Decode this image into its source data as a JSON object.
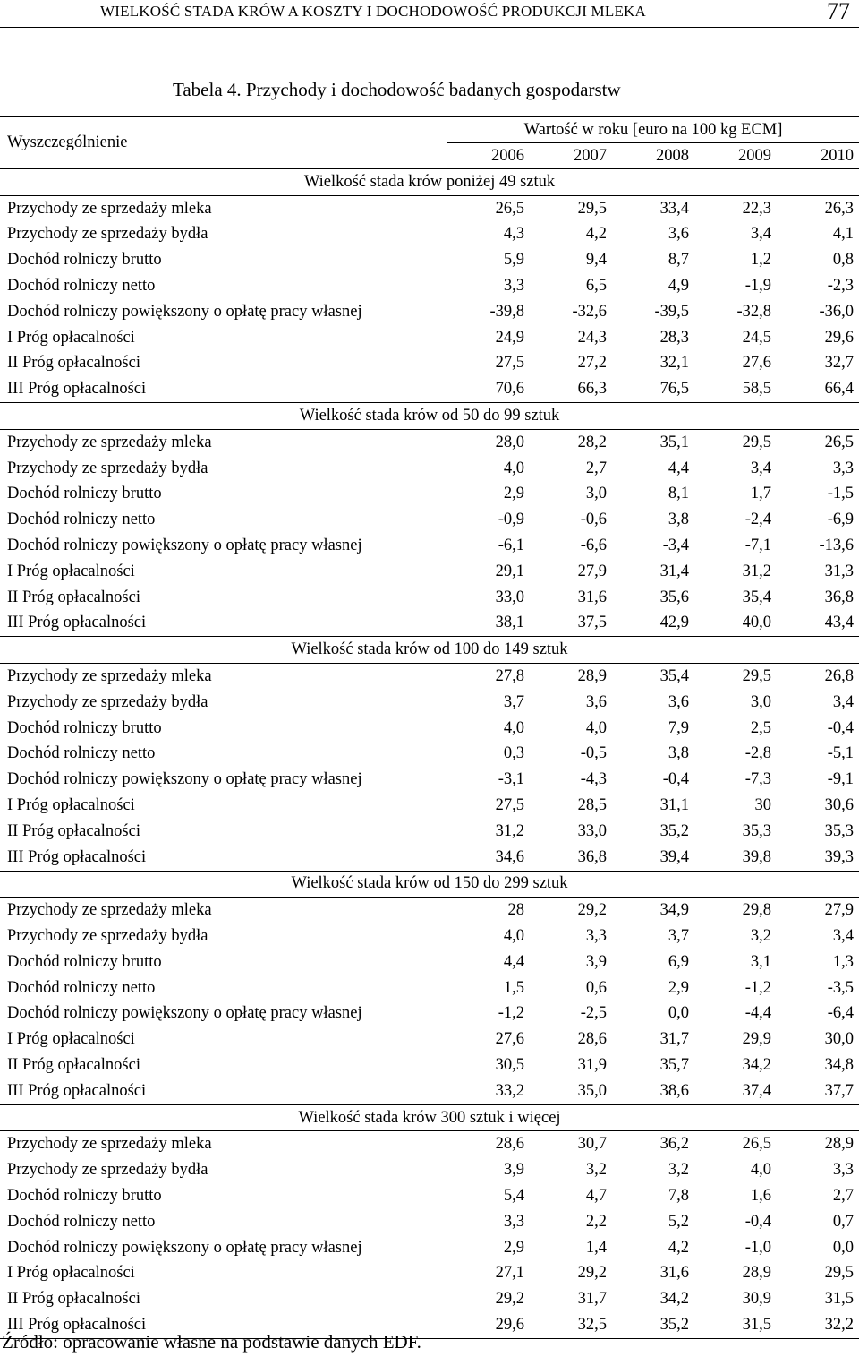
{
  "running_header": {
    "title": "WIELKOŚĆ STADA KRÓW A KOSZTY I DOCHODOWOŚĆ PRODUKCJI MLEKA",
    "page_number": "77"
  },
  "table": {
    "caption": "Tabela 4. Przychody i dochodowość badanych gospodarstw",
    "row_header": "Wyszczególnienie",
    "value_header": "Wartość w roku [euro na 100 kg ECM]",
    "years": [
      "2006",
      "2007",
      "2008",
      "2009",
      "2010"
    ],
    "groups": [
      {
        "title": "Wielkość stada krów poniżej 49 sztuk",
        "rows": [
          {
            "label": "Przychody ze sprzedaży mleka",
            "values": [
              "26,5",
              "29,5",
              "33,4",
              "22,3",
              "26,3"
            ]
          },
          {
            "label": "Przychody ze sprzedaży bydła",
            "values": [
              "4,3",
              "4,2",
              "3,6",
              "3,4",
              "4,1"
            ]
          },
          {
            "label": "Dochód rolniczy brutto",
            "values": [
              "5,9",
              "9,4",
              "8,7",
              "1,2",
              "0,8"
            ]
          },
          {
            "label": "Dochód rolniczy netto",
            "values": [
              "3,3",
              "6,5",
              "4,9",
              "-1,9",
              "-2,3"
            ]
          },
          {
            "label": "Dochód rolniczy powiększony o opłatę  pracy własnej",
            "values": [
              "-39,8",
              "-32,6",
              "-39,5",
              "-32,8",
              "-36,0"
            ]
          },
          {
            "label": "I Próg opłacalności",
            "values": [
              "24,9",
              "24,3",
              "28,3",
              "24,5",
              "29,6"
            ]
          },
          {
            "label": "II Próg opłacalności",
            "values": [
              "27,5",
              "27,2",
              "32,1",
              "27,6",
              "32,7"
            ]
          },
          {
            "label": "III Próg opłacalności",
            "values": [
              "70,6",
              "66,3",
              "76,5",
              "58,5",
              "66,4"
            ]
          }
        ]
      },
      {
        "title": "Wielkość stada krów od 50 do 99 sztuk",
        "rows": [
          {
            "label": "Przychody ze sprzedaży mleka",
            "values": [
              "28,0",
              "28,2",
              "35,1",
              "29,5",
              "26,5"
            ]
          },
          {
            "label": "Przychody ze sprzedaży bydła",
            "values": [
              "4,0",
              "2,7",
              "4,4",
              "3,4",
              "3,3"
            ]
          },
          {
            "label": "Dochód rolniczy brutto",
            "values": [
              "2,9",
              "3,0",
              "8,1",
              "1,7",
              "-1,5"
            ]
          },
          {
            "label": "Dochód rolniczy netto",
            "values": [
              "-0,9",
              "-0,6",
              "3,8",
              "-2,4",
              "-6,9"
            ]
          },
          {
            "label": "Dochód rolniczy powiększony o opłatę pracy własnej",
            "values": [
              "-6,1",
              "-6,6",
              "-3,4",
              "-7,1",
              "-13,6"
            ]
          },
          {
            "label": "I Próg opłacalności",
            "values": [
              "29,1",
              "27,9",
              "31,4",
              "31,2",
              "31,3"
            ]
          },
          {
            "label": "II Próg opłacalności",
            "values": [
              "33,0",
              "31,6",
              "35,6",
              "35,4",
              "36,8"
            ]
          },
          {
            "label": "III Próg opłacalności",
            "values": [
              "38,1",
              "37,5",
              "42,9",
              "40,0",
              "43,4"
            ]
          }
        ]
      },
      {
        "title": "Wielkość stada krów od 100 do 149 sztuk",
        "rows": [
          {
            "label": "Przychody ze sprzedaży mleka",
            "values": [
              "27,8",
              "28,9",
              "35,4",
              "29,5",
              "26,8"
            ]
          },
          {
            "label": "Przychody ze sprzedaży bydła",
            "values": [
              "3,7",
              "3,6",
              "3,6",
              "3,0",
              "3,4"
            ]
          },
          {
            "label": "Dochód rolniczy brutto",
            "values": [
              "4,0",
              "4,0",
              "7,9",
              "2,5",
              "-0,4"
            ]
          },
          {
            "label": "Dochód rolniczy netto",
            "values": [
              "0,3",
              "-0,5",
              "3,8",
              "-2,8",
              "-5,1"
            ]
          },
          {
            "label": "Dochód rolniczy powiększony o opłatę  pracy własnej",
            "values": [
              "-3,1",
              "-4,3",
              "-0,4",
              "-7,3",
              "-9,1"
            ]
          },
          {
            "label": "I Próg opłacalności",
            "values": [
              "27,5",
              "28,5",
              "31,1",
              "30",
              "30,6"
            ]
          },
          {
            "label": "II Próg opłacalności",
            "values": [
              "31,2",
              "33,0",
              "35,2",
              "35,3",
              "35,3"
            ]
          },
          {
            "label": "III Próg opłacalności",
            "values": [
              "34,6",
              "36,8",
              "39,4",
              "39,8",
              "39,3"
            ]
          }
        ]
      },
      {
        "title": "Wielkość stada krów od 150 do 299 sztuk",
        "rows": [
          {
            "label": "Przychody ze sprzedaży mleka",
            "values": [
              "28",
              "29,2",
              "34,9",
              "29,8",
              "27,9"
            ]
          },
          {
            "label": "Przychody ze sprzedaży bydła",
            "values": [
              "4,0",
              "3,3",
              "3,7",
              "3,2",
              "3,4"
            ]
          },
          {
            "label": "Dochód rolniczy brutto",
            "values": [
              "4,4",
              "3,9",
              "6,9",
              "3,1",
              "1,3"
            ]
          },
          {
            "label": "Dochód rolniczy netto",
            "values": [
              "1,5",
              "0,6",
              "2,9",
              "-1,2",
              "-3,5"
            ]
          },
          {
            "label": "Dochód rolniczy powiększony o opłatę  pracy własnej",
            "values": [
              "-1,2",
              "-2,5",
              "0,0",
              "-4,4",
              "-6,4"
            ]
          },
          {
            "label": "I Próg opłacalności",
            "values": [
              "27,6",
              "28,6",
              "31,7",
              "29,9",
              "30,0"
            ]
          },
          {
            "label": "II Próg opłacalności",
            "values": [
              "30,5",
              "31,9",
              "35,7",
              "34,2",
              "34,8"
            ]
          },
          {
            "label": "III Próg opłacalności",
            "values": [
              "33,2",
              "35,0",
              "38,6",
              "37,4",
              "37,7"
            ]
          }
        ]
      },
      {
        "title": "Wielkość stada krów 300 sztuk i więcej",
        "rows": [
          {
            "label": "Przychody ze sprzedaży mleka",
            "values": [
              "28,6",
              "30,7",
              "36,2",
              "26,5",
              "28,9"
            ]
          },
          {
            "label": "Przychody ze sprzedaży bydła",
            "values": [
              "3,9",
              "3,2",
              "3,2",
              "4,0",
              "3,3"
            ]
          },
          {
            "label": "Dochód rolniczy brutto",
            "values": [
              "5,4",
              "4,7",
              "7,8",
              "1,6",
              "2,7"
            ]
          },
          {
            "label": "Dochód rolniczy netto",
            "values": [
              "3,3",
              "2,2",
              "5,2",
              "-0,4",
              "0,7"
            ]
          },
          {
            "label": "Dochód rolniczy powiększony o opłatę pracy własnej",
            "values": [
              "2,9",
              "1,4",
              "4,2",
              "-1,0",
              "0,0"
            ]
          },
          {
            "label": "I Próg opłacalności",
            "values": [
              "27,1",
              "29,2",
              "31,6",
              "28,9",
              "29,5"
            ]
          },
          {
            "label": "II Próg opłacalności",
            "values": [
              "29,2",
              "31,7",
              "34,2",
              "30,9",
              "31,5"
            ]
          },
          {
            "label": "III Próg opłacalności",
            "values": [
              "29,6",
              "32,5",
              "35,2",
              "31,5",
              "32,2"
            ]
          }
        ]
      }
    ],
    "source": "Źródło: opracowanie własne na podstawie danych EDF."
  }
}
